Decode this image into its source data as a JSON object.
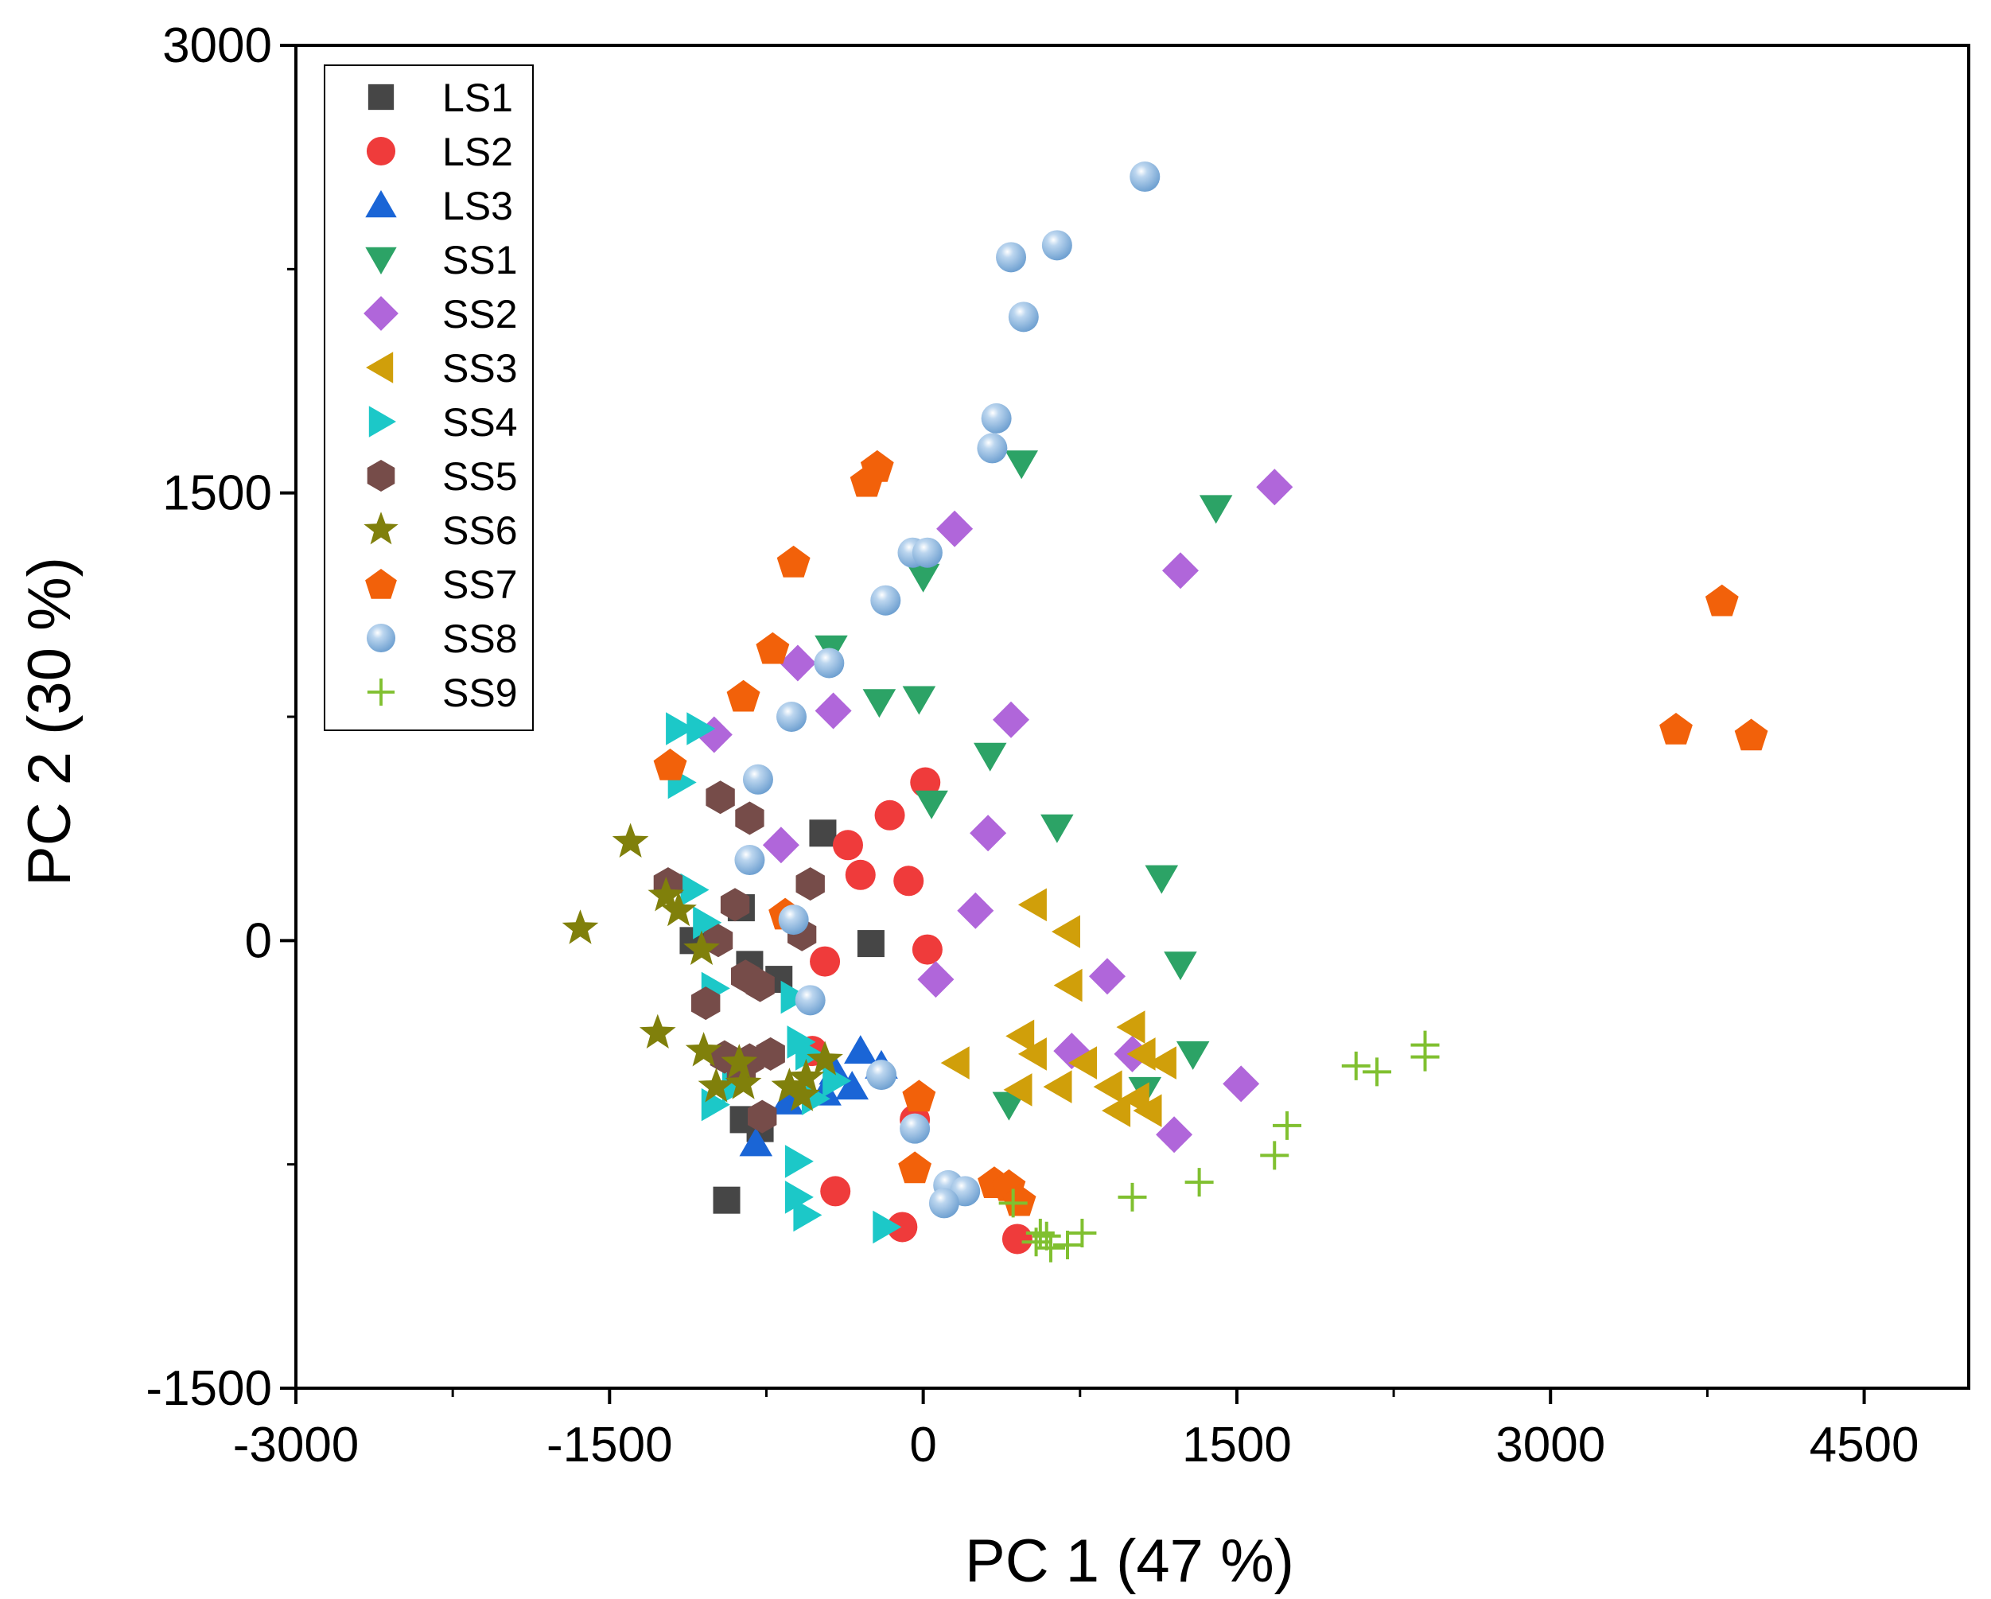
{
  "chart_data": {
    "type": "scatter",
    "title": "",
    "xlabel": "PC 1 (47 %)",
    "ylabel": "PC 2 (30 %)",
    "xlim": [
      -3000,
      5000
    ],
    "ylim": [
      -1500,
      3000
    ],
    "xticks": [
      -3000,
      -1500,
      0,
      1500,
      3000,
      4500
    ],
    "yticks": [
      -1500,
      0,
      1500,
      3000
    ],
    "x_minor_ticks": [
      -2250,
      -750,
      750,
      2250,
      3750
    ],
    "y_minor_ticks": [
      -750,
      750,
      2250
    ],
    "grid": false,
    "legend_position": "top-left",
    "series": [
      {
        "name": "LS1",
        "marker": "square",
        "color": "#464646",
        "points": [
          [
            -480,
            360
          ],
          [
            -1100,
            0
          ],
          [
            -870,
            110
          ],
          [
            -830,
            -80
          ],
          [
            -690,
            -130
          ],
          [
            -250,
            -10
          ],
          [
            -860,
            -600
          ],
          [
            -940,
            -870
          ],
          [
            -780,
            -630
          ]
        ]
      },
      {
        "name": "LS2",
        "marker": "circle",
        "color": "#ef3b3b",
        "points": [
          [
            10,
            530
          ],
          [
            -160,
            420
          ],
          [
            -360,
            320
          ],
          [
            -300,
            220
          ],
          [
            -70,
            200
          ],
          [
            -470,
            -70
          ],
          [
            20,
            -30
          ],
          [
            -530,
            -370
          ],
          [
            -420,
            -840
          ],
          [
            -100,
            -960
          ],
          [
            450,
            -1000
          ],
          [
            -40,
            -600
          ]
        ]
      },
      {
        "name": "LS3",
        "marker": "triangle-up",
        "color": "#1a65d6",
        "points": [
          [
            -300,
            -370
          ],
          [
            -200,
            -420
          ],
          [
            -420,
            -440
          ],
          [
            -340,
            -490
          ],
          [
            -470,
            -510
          ],
          [
            -650,
            -540
          ],
          [
            -800,
            -680
          ]
        ]
      },
      {
        "name": "SS1",
        "marker": "triangle-down",
        "color": "#2ca366",
        "points": [
          [
            470,
            1600
          ],
          [
            1400,
            1450
          ],
          [
            0,
            1220
          ],
          [
            -440,
            980
          ],
          [
            -210,
            800
          ],
          [
            -20,
            810
          ],
          [
            320,
            620
          ],
          [
            40,
            460
          ],
          [
            640,
            380
          ],
          [
            1140,
            210
          ],
          [
            1230,
            -80
          ],
          [
            1290,
            -380
          ],
          [
            1060,
            -500
          ],
          [
            410,
            -550
          ]
        ]
      },
      {
        "name": "SS2",
        "marker": "diamond",
        "color": "#b066da",
        "points": [
          [
            1680,
            1520
          ],
          [
            150,
            1380
          ],
          [
            1230,
            1240
          ],
          [
            -600,
            930
          ],
          [
            -430,
            770
          ],
          [
            420,
            740
          ],
          [
            -1000,
            690
          ],
          [
            -680,
            320
          ],
          [
            310,
            360
          ],
          [
            250,
            100
          ],
          [
            60,
            -130
          ],
          [
            880,
            -120
          ],
          [
            710,
            -370
          ],
          [
            1000,
            -380
          ],
          [
            1520,
            -480
          ],
          [
            1200,
            -650
          ]
        ]
      },
      {
        "name": "SS3",
        "marker": "triangle-left",
        "color": "#d09f0a",
        "points": [
          [
            530,
            120
          ],
          [
            690,
            30
          ],
          [
            700,
            -150
          ],
          [
            470,
            -320
          ],
          [
            1000,
            -290
          ],
          [
            530,
            -380
          ],
          [
            770,
            -410
          ],
          [
            1050,
            -380
          ],
          [
            1150,
            -410
          ],
          [
            160,
            -410
          ],
          [
            460,
            -500
          ],
          [
            650,
            -490
          ],
          [
            890,
            -490
          ],
          [
            1020,
            -530
          ],
          [
            930,
            -570
          ],
          [
            1080,
            -570
          ]
        ]
      },
      {
        "name": "SS4",
        "marker": "triangle-right",
        "color": "#1cc8c8",
        "points": [
          [
            -1170,
            710
          ],
          [
            -1070,
            710
          ],
          [
            -1160,
            530
          ],
          [
            -1100,
            170
          ],
          [
            -1040,
            60
          ],
          [
            -1000,
            -160
          ],
          [
            -620,
            -190
          ],
          [
            -590,
            -340
          ],
          [
            -550,
            -380
          ],
          [
            -900,
            -490
          ],
          [
            -1000,
            -550
          ],
          [
            -520,
            -530
          ],
          [
            -420,
            -470
          ],
          [
            -600,
            -740
          ],
          [
            -600,
            -860
          ],
          [
            -560,
            -920
          ],
          [
            -180,
            -960
          ]
        ]
      },
      {
        "name": "SS5",
        "marker": "hexagon",
        "color": "#764c49",
        "points": [
          [
            -970,
            480
          ],
          [
            -830,
            410
          ],
          [
            -1220,
            190
          ],
          [
            -540,
            190
          ],
          [
            -900,
            120
          ],
          [
            -580,
            20
          ],
          [
            -980,
            0
          ],
          [
            -850,
            -120
          ],
          [
            -780,
            -150
          ],
          [
            -1040,
            -210
          ],
          [
            -950,
            -390
          ],
          [
            -830,
            -400
          ],
          [
            -730,
            -380
          ],
          [
            -770,
            -590
          ],
          [
            -870,
            -440
          ]
        ]
      },
      {
        "name": "SS6",
        "marker": "star",
        "color": "#80800b",
        "points": [
          [
            -1400,
            330
          ],
          [
            -1230,
            150
          ],
          [
            -1170,
            100
          ],
          [
            -1640,
            40
          ],
          [
            -1060,
            -30
          ],
          [
            -1270,
            -310
          ],
          [
            -1050,
            -370
          ],
          [
            -880,
            -410
          ],
          [
            -560,
            -460
          ],
          [
            -470,
            -400
          ],
          [
            -990,
            -490
          ],
          [
            -860,
            -480
          ],
          [
            -640,
            -490
          ],
          [
            -580,
            -520
          ]
        ]
      },
      {
        "name": "SS7",
        "marker": "pentagon",
        "color": "#f2610a",
        "points": [
          [
            -220,
            1590
          ],
          [
            -270,
            1540
          ],
          [
            -620,
            1270
          ],
          [
            -720,
            980
          ],
          [
            -860,
            820
          ],
          [
            -1210,
            590
          ],
          [
            -660,
            90
          ],
          [
            3820,
            1140
          ],
          [
            3600,
            710
          ],
          [
            3960,
            690
          ],
          [
            -20,
            -520
          ],
          [
            -40,
            -760
          ],
          [
            340,
            -810
          ],
          [
            410,
            -820
          ],
          [
            460,
            -870
          ]
        ]
      },
      {
        "name": "SS8",
        "marker": "sphere",
        "color": "#6d9fd0",
        "points": [
          [
            1060,
            2560
          ],
          [
            640,
            2330
          ],
          [
            420,
            2290
          ],
          [
            480,
            2090
          ],
          [
            350,
            1750
          ],
          [
            330,
            1650
          ],
          [
            -50,
            1300
          ],
          [
            20,
            1300
          ],
          [
            -180,
            1140
          ],
          [
            -450,
            930
          ],
          [
            -630,
            750
          ],
          [
            -790,
            540
          ],
          [
            -830,
            270
          ],
          [
            -620,
            70
          ],
          [
            -540,
            -200
          ],
          [
            -200,
            -450
          ],
          [
            -40,
            -630
          ],
          [
            120,
            -820
          ],
          [
            200,
            -840
          ],
          [
            100,
            -880
          ]
        ]
      },
      {
        "name": "SS9",
        "marker": "plus",
        "color": "#80c030",
        "points": [
          [
            2400,
            -350
          ],
          [
            2400,
            -390
          ],
          [
            2070,
            -420
          ],
          [
            2170,
            -440
          ],
          [
            1740,
            -620
          ],
          [
            1680,
            -720
          ],
          [
            1320,
            -810
          ],
          [
            1000,
            -860
          ],
          [
            430,
            -880
          ],
          [
            560,
            -980
          ],
          [
            590,
            -990
          ],
          [
            760,
            -980
          ],
          [
            690,
            -1020
          ],
          [
            540,
            -1010
          ],
          [
            610,
            -1030
          ]
        ]
      }
    ]
  }
}
